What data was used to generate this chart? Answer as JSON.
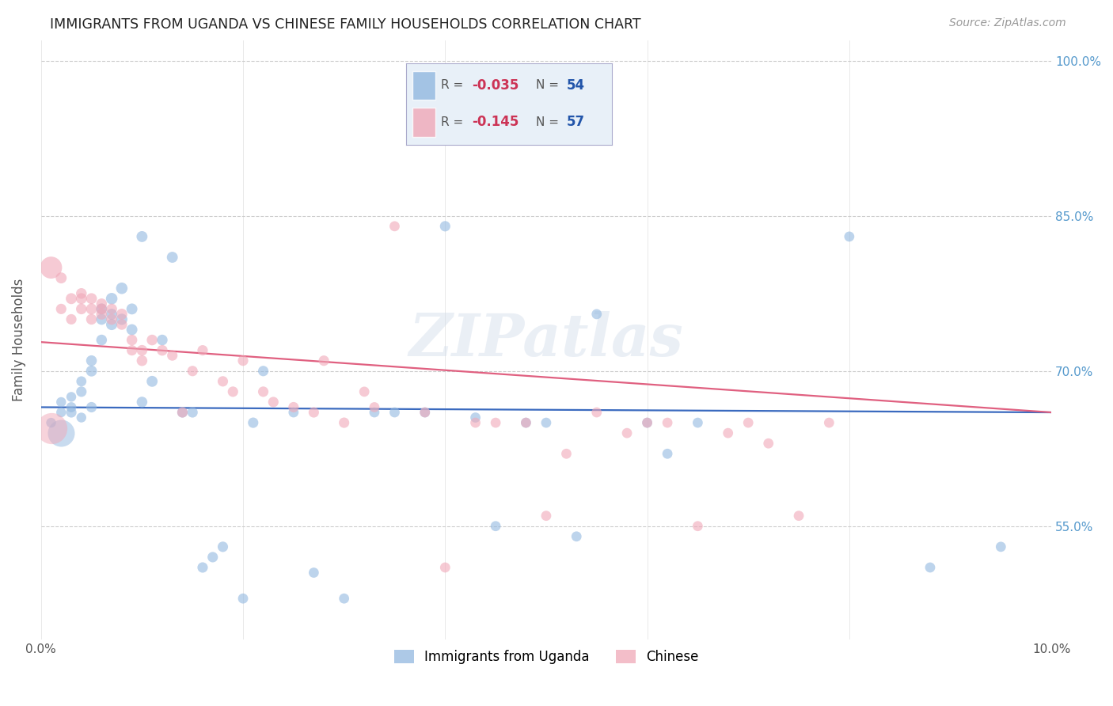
{
  "title": "IMMIGRANTS FROM UGANDA VS CHINESE FAMILY HOUSEHOLDS CORRELATION CHART",
  "source": "Source: ZipAtlas.com",
  "ylabel": "Family Households",
  "xlim": [
    0.0,
    0.1
  ],
  "ylim": [
    0.44,
    1.02
  ],
  "xtick_positions": [
    0.0,
    0.02,
    0.04,
    0.06,
    0.08,
    0.1
  ],
  "xtick_labels": [
    "0.0%",
    "",
    "",
    "",
    "",
    "10.0%"
  ],
  "yticks": [
    0.55,
    0.7,
    0.85,
    1.0
  ],
  "ytick_labels": [
    "55.0%",
    "70.0%",
    "85.0%",
    "100.0%"
  ],
  "legend_labels": [
    "Immigrants from Uganda",
    "Chinese"
  ],
  "blue_color": "#92b8e0",
  "pink_color": "#f0a8b8",
  "blue_line_color": "#3a6abf",
  "pink_line_color": "#e06080",
  "watermark": "ZIPatlas",
  "background_color": "#ffffff",
  "grid_color": "#cccccc",
  "title_color": "#222222",
  "right_axis_color": "#5599cc",
  "n_uganda": 54,
  "n_chinese": 57,
  "R_uganda": -0.035,
  "R_chinese": -0.145,
  "uganda_x": [
    0.001,
    0.002,
    0.002,
    0.003,
    0.003,
    0.003,
    0.004,
    0.004,
    0.004,
    0.005,
    0.005,
    0.005,
    0.006,
    0.006,
    0.006,
    0.007,
    0.007,
    0.007,
    0.008,
    0.008,
    0.009,
    0.009,
    0.01,
    0.01,
    0.011,
    0.012,
    0.013,
    0.014,
    0.015,
    0.016,
    0.017,
    0.018,
    0.02,
    0.021,
    0.022,
    0.025,
    0.027,
    0.03,
    0.033,
    0.035,
    0.038,
    0.04,
    0.043,
    0.045,
    0.048,
    0.05,
    0.053,
    0.055,
    0.06,
    0.062,
    0.065,
    0.08,
    0.088,
    0.095
  ],
  "uganda_y": [
    0.65,
    0.66,
    0.67,
    0.66,
    0.675,
    0.665,
    0.68,
    0.655,
    0.69,
    0.7,
    0.665,
    0.71,
    0.75,
    0.73,
    0.76,
    0.77,
    0.755,
    0.745,
    0.78,
    0.75,
    0.76,
    0.74,
    0.67,
    0.83,
    0.69,
    0.73,
    0.81,
    0.66,
    0.66,
    0.51,
    0.52,
    0.53,
    0.48,
    0.65,
    0.7,
    0.66,
    0.505,
    0.48,
    0.66,
    0.66,
    0.66,
    0.84,
    0.655,
    0.55,
    0.65,
    0.65,
    0.54,
    0.755,
    0.65,
    0.62,
    0.65,
    0.83,
    0.51,
    0.53
  ],
  "uganda_sizes": [
    80,
    80,
    80,
    90,
    80,
    85,
    90,
    80,
    85,
    100,
    90,
    95,
    100,
    95,
    100,
    110,
    100,
    105,
    110,
    105,
    100,
    100,
    95,
    100,
    100,
    95,
    100,
    90,
    90,
    90,
    90,
    90,
    85,
    90,
    90,
    85,
    85,
    85,
    85,
    85,
    85,
    90,
    85,
    85,
    85,
    85,
    85,
    85,
    85,
    85,
    85,
    85,
    85,
    85
  ],
  "chinese_x": [
    0.001,
    0.002,
    0.002,
    0.003,
    0.003,
    0.004,
    0.004,
    0.004,
    0.005,
    0.005,
    0.005,
    0.006,
    0.006,
    0.006,
    0.007,
    0.007,
    0.008,
    0.008,
    0.009,
    0.009,
    0.01,
    0.01,
    0.011,
    0.012,
    0.013,
    0.014,
    0.015,
    0.016,
    0.018,
    0.019,
    0.02,
    0.022,
    0.023,
    0.025,
    0.027,
    0.028,
    0.03,
    0.032,
    0.033,
    0.035,
    0.038,
    0.04,
    0.043,
    0.045,
    0.048,
    0.05,
    0.052,
    0.055,
    0.058,
    0.06,
    0.062,
    0.065,
    0.068,
    0.07,
    0.072,
    0.075,
    0.078
  ],
  "chinese_y": [
    0.8,
    0.79,
    0.76,
    0.77,
    0.75,
    0.76,
    0.77,
    0.775,
    0.76,
    0.75,
    0.77,
    0.76,
    0.755,
    0.765,
    0.75,
    0.76,
    0.755,
    0.745,
    0.73,
    0.72,
    0.71,
    0.72,
    0.73,
    0.72,
    0.715,
    0.66,
    0.7,
    0.72,
    0.69,
    0.68,
    0.71,
    0.68,
    0.67,
    0.665,
    0.66,
    0.71,
    0.65,
    0.68,
    0.665,
    0.84,
    0.66,
    0.51,
    0.65,
    0.65,
    0.65,
    0.56,
    0.62,
    0.66,
    0.64,
    0.65,
    0.65,
    0.55,
    0.64,
    0.65,
    0.63,
    0.56,
    0.65
  ],
  "chinese_sizes": [
    400,
    100,
    90,
    100,
    90,
    95,
    100,
    95,
    100,
    95,
    100,
    95,
    100,
    95,
    100,
    95,
    100,
    95,
    95,
    90,
    95,
    95,
    95,
    95,
    90,
    90,
    90,
    90,
    90,
    90,
    90,
    90,
    90,
    90,
    90,
    90,
    90,
    85,
    85,
    85,
    85,
    85,
    85,
    85,
    85,
    85,
    85,
    85,
    85,
    85,
    85,
    85,
    85,
    85,
    85,
    85,
    85
  ]
}
